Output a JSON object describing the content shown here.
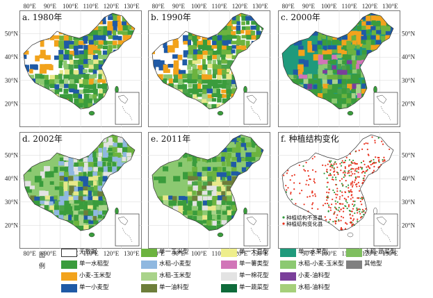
{
  "panels": [
    {
      "title": "a. 1980年",
      "kind": "crop",
      "palette": [
        "#1f5aa6",
        "#f2a31c",
        "#3a9c3c",
        "#6cb33f",
        "#e7e88a",
        "#8cc971",
        "#4aa24a",
        "#1f5aa6",
        "#a9d38a"
      ],
      "west": "#ffffff",
      "ylabels": "left",
      "xlabels": false
    },
    {
      "title": "b. 1990年",
      "kind": "crop",
      "palette": [
        "#1f5aa6",
        "#f2a31c",
        "#3a9c3c",
        "#6cb33f",
        "#e7e88a",
        "#8cc971",
        "#4aa24a",
        "#f2a31c",
        "#a9d38a"
      ],
      "west": "#ffffff",
      "ylabels": "none",
      "xlabels": false
    },
    {
      "title": "c. 2000年",
      "kind": "crop",
      "palette": [
        "#1f5aa6",
        "#f2a31c",
        "#3a9c3c",
        "#6cb33f",
        "#7a3f9a",
        "#8cc971",
        "#4aa24a",
        "#d175b8",
        "#a9d38a"
      ],
      "west": "#1f9a7c",
      "ylabels": "right",
      "xlabels": false
    },
    {
      "title": "d. 2002年",
      "kind": "crop",
      "palette": [
        "#e3e3e3",
        "#3a9c3c",
        "#6cb33f",
        "#8fb8e0",
        "#1f5aa6",
        "#e7e88a",
        "#4aa24a",
        "#6d7e3a",
        "#a9d38a"
      ],
      "west": "#8cc971",
      "ylabels": "left",
      "xlabels": true
    },
    {
      "title": "e. 2011年",
      "kind": "crop",
      "palette": [
        "#8cc971",
        "#3a9c3c",
        "#6cb33f",
        "#1f5aa6",
        "#e3e3e3",
        "#e7e88a",
        "#4aa24a",
        "#6d7e3a",
        "#a9d38a"
      ],
      "west": "#8cc971",
      "ylabels": "none",
      "xlabels": true
    },
    {
      "title": "f. 种植结构变化",
      "kind": "dots",
      "palette": [
        "#2f9a3a",
        "#e8301c"
      ],
      "west": "#ffffff",
      "ylabels": "right",
      "xlabels": true
    }
  ],
  "dot_legend": [
    "种植结构不变县",
    "种植结构变化县"
  ],
  "ticks": {
    "lon": [
      "80°E",
      "90°E",
      "100°E",
      "110°E",
      "120°E",
      "130°E"
    ],
    "lat": [
      "50°N",
      "40°N",
      "30°N",
      "20°N"
    ]
  },
  "legend": {
    "head": [
      "图",
      "例"
    ],
    "items": [
      {
        "label": "无数据",
        "color": "#ffffff"
      },
      {
        "label": "单一水稻型",
        "color": "#3a9c3c"
      },
      {
        "label": "小麦-玉米型",
        "color": "#f2a31c"
      },
      {
        "label": "单一小麦型",
        "color": "#1f5aa6"
      },
      {
        "label": "单一玉米型",
        "color": "#6cb33f"
      },
      {
        "label": "水稻-小麦型",
        "color": "#8fb8e0"
      },
      {
        "label": "水稻-玉米型",
        "color": "#a9d38a"
      },
      {
        "label": "单一油料型",
        "color": "#6d7e3a"
      },
      {
        "label": "单一大豆型",
        "color": "#eeee8c"
      },
      {
        "label": "单一薯类型",
        "color": "#d175b8"
      },
      {
        "label": "单一棉花型",
        "color": "#e3e3e3"
      },
      {
        "label": "单一蔬菜型",
        "color": "#0e6b3a"
      },
      {
        "label": "单一水果型",
        "color": "#1f9a7c"
      },
      {
        "label": "水稻-小麦-玉米型",
        "color": "#8cc971"
      },
      {
        "label": "小麦-油料型",
        "color": "#7a3f9a"
      },
      {
        "label": "水稻-油料型",
        "color": "#a6cf7a"
      },
      {
        "label": "水稻-蔬菜型",
        "color": "#7fbf5f"
      },
      {
        "label": "其他型",
        "color": "#808080"
      }
    ]
  }
}
